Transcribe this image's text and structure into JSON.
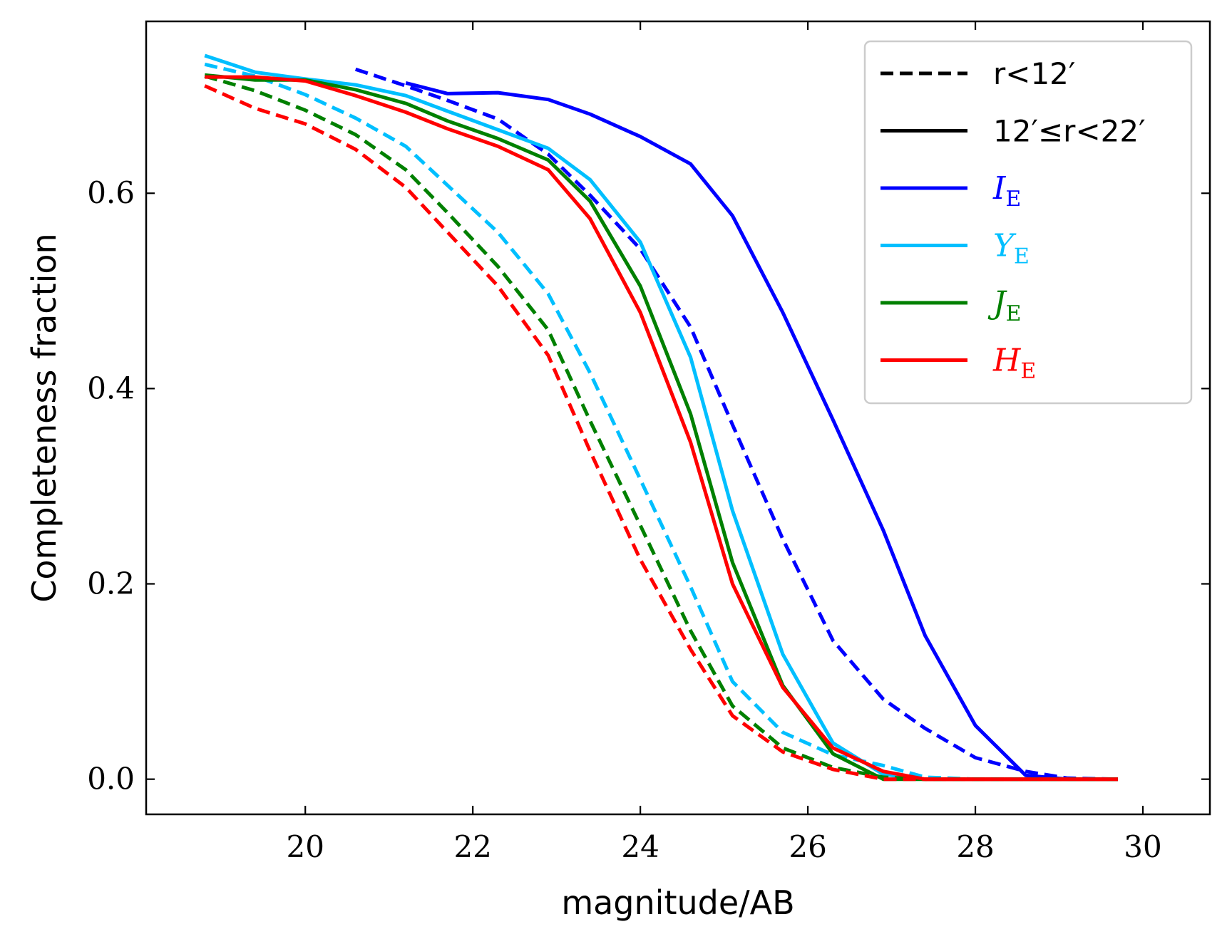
{
  "chart_data": {
    "type": "line",
    "title": "",
    "xlabel": "magnitude/AB",
    "ylabel": "Completeness fraction",
    "xlim": [
      18.1,
      30.8
    ],
    "ylim": [
      -0.036,
      0.776
    ],
    "xticks": [
      20,
      22,
      24,
      26,
      28,
      30
    ],
    "xtick_labels": [
      "20",
      "22",
      "24",
      "26",
      "28",
      "30"
    ],
    "yticks": [
      0.0,
      0.2,
      0.4,
      0.6
    ],
    "ytick_labels": [
      "0.0",
      "0.2",
      "0.4",
      "0.6"
    ],
    "grid": false,
    "legend_position": "top-right",
    "legend": [
      {
        "label": "r<12′",
        "color": "#000000",
        "style": "dashed"
      },
      {
        "label": "12′≤r<22′",
        "color": "#000000",
        "style": "solid"
      },
      {
        "label": "I",
        "sub": "E",
        "color": "#0000ff",
        "style": "solid"
      },
      {
        "label": "Y",
        "sub": "E",
        "color": "#00bfff",
        "style": "solid"
      },
      {
        "label": "J",
        "sub": "E",
        "color": "#008000",
        "style": "solid"
      },
      {
        "label": "H",
        "sub": "E",
        "color": "#ff0000",
        "style": "solid"
      }
    ],
    "series": [
      {
        "name": "I_E r<12′",
        "band": "I_E",
        "region": "inner",
        "color": "#0000ff",
        "style": "dashed",
        "x": [
          20.6,
          21.2,
          21.7,
          22.3,
          22.9,
          23.4,
          24.0,
          24.6,
          25.1,
          25.7,
          26.3,
          26.9,
          27.4,
          28.0,
          28.6,
          29.1,
          29.7
        ],
        "y": [
          0.727,
          0.71,
          0.695,
          0.676,
          0.64,
          0.598,
          0.543,
          0.463,
          0.363,
          0.246,
          0.142,
          0.082,
          0.052,
          0.022,
          0.008,
          0.001,
          0.0
        ]
      },
      {
        "name": "I_E 12′≤r<22′",
        "band": "I_E",
        "region": "outer",
        "color": "#0000ff",
        "style": "solid",
        "x": [
          21.2,
          21.7,
          22.3,
          22.9,
          23.4,
          24.0,
          24.6,
          25.1,
          25.7,
          26.3,
          26.9,
          27.4,
          28.0,
          28.6,
          29.1,
          29.7
        ],
        "y": [
          0.713,
          0.702,
          0.703,
          0.696,
          0.681,
          0.658,
          0.63,
          0.577,
          0.478,
          0.368,
          0.255,
          0.147,
          0.055,
          0.004,
          0.0,
          0.0
        ]
      },
      {
        "name": "Y_E r<12′",
        "band": "Y_E",
        "region": "inner",
        "color": "#00bfff",
        "style": "dashed",
        "x": [
          18.8,
          19.4,
          20.0,
          20.6,
          21.2,
          21.7,
          22.3,
          22.9,
          23.4,
          24.0,
          24.6,
          25.1,
          25.7,
          26.3,
          26.9,
          27.4,
          28.0,
          28.6,
          29.1,
          29.7
        ],
        "y": [
          0.732,
          0.72,
          0.701,
          0.677,
          0.648,
          0.608,
          0.56,
          0.497,
          0.416,
          0.307,
          0.197,
          0.1,
          0.048,
          0.025,
          0.014,
          0.002,
          0.0,
          0.0,
          0.0,
          0.0
        ]
      },
      {
        "name": "Y_E 12′≤r<22′",
        "band": "Y_E",
        "region": "outer",
        "color": "#00bfff",
        "style": "solid",
        "x": [
          18.8,
          19.4,
          20.0,
          20.6,
          21.2,
          21.7,
          22.3,
          22.9,
          23.4,
          24.0,
          24.6,
          25.1,
          25.7,
          26.3,
          26.9,
          27.4,
          28.0,
          28.6,
          29.1,
          29.7
        ],
        "y": [
          0.741,
          0.724,
          0.717,
          0.711,
          0.7,
          0.684,
          0.665,
          0.646,
          0.614,
          0.55,
          0.432,
          0.275,
          0.128,
          0.037,
          0.005,
          0.0,
          0.0,
          0.0,
          0.0,
          0.0
        ]
      },
      {
        "name": "J_E r<12′",
        "band": "J_E",
        "region": "inner",
        "color": "#008000",
        "style": "dashed",
        "x": [
          18.8,
          19.4,
          20.0,
          20.6,
          21.2,
          21.7,
          22.3,
          22.9,
          23.4,
          24.0,
          24.6,
          25.1,
          25.7,
          26.3,
          26.9,
          27.4,
          28.0,
          28.6,
          29.1,
          29.7
        ],
        "y": [
          0.72,
          0.705,
          0.685,
          0.66,
          0.624,
          0.58,
          0.525,
          0.46,
          0.367,
          0.26,
          0.152,
          0.075,
          0.032,
          0.012,
          0.002,
          0.0,
          0.0,
          0.0,
          0.0,
          0.0
        ]
      },
      {
        "name": "J_E 12′≤r<22′",
        "band": "J_E",
        "region": "outer",
        "color": "#008000",
        "style": "solid",
        "x": [
          18.8,
          19.4,
          20.0,
          20.6,
          21.2,
          21.7,
          22.3,
          22.9,
          23.4,
          24.0,
          24.6,
          25.1,
          25.7,
          26.3,
          26.9,
          27.4,
          28.0,
          28.6,
          29.1,
          29.7
        ],
        "y": [
          0.721,
          0.716,
          0.716,
          0.706,
          0.692,
          0.674,
          0.656,
          0.634,
          0.592,
          0.505,
          0.374,
          0.222,
          0.096,
          0.026,
          0.0,
          0.0,
          0.0,
          0.0,
          0.0,
          0.0
        ]
      },
      {
        "name": "H_E r<12′",
        "band": "H_E",
        "region": "inner",
        "color": "#ff0000",
        "style": "dashed",
        "x": [
          18.8,
          19.4,
          20.0,
          20.6,
          21.2,
          21.7,
          22.3,
          22.9,
          23.4,
          24.0,
          24.6,
          25.1,
          25.7,
          26.3,
          26.9,
          27.4,
          28.0,
          28.6,
          29.1,
          29.7
        ],
        "y": [
          0.71,
          0.687,
          0.671,
          0.645,
          0.606,
          0.56,
          0.505,
          0.434,
          0.336,
          0.225,
          0.133,
          0.065,
          0.028,
          0.01,
          0.0,
          0.0,
          0.0,
          0.0,
          0.0,
          0.0
        ]
      },
      {
        "name": "H_E 12′≤r<22′",
        "band": "H_E",
        "region": "outer",
        "color": "#ff0000",
        "style": "solid",
        "x": [
          18.8,
          19.4,
          20.0,
          20.6,
          21.2,
          21.7,
          22.3,
          22.9,
          23.4,
          24.0,
          24.6,
          25.1,
          25.7,
          26.3,
          26.9,
          27.4,
          28.0,
          28.6,
          29.1,
          29.7
        ],
        "y": [
          0.719,
          0.719,
          0.715,
          0.7,
          0.683,
          0.666,
          0.648,
          0.624,
          0.574,
          0.478,
          0.345,
          0.2,
          0.094,
          0.032,
          0.008,
          0.0,
          0.0,
          0.0,
          0.0,
          0.0
        ]
      }
    ]
  }
}
